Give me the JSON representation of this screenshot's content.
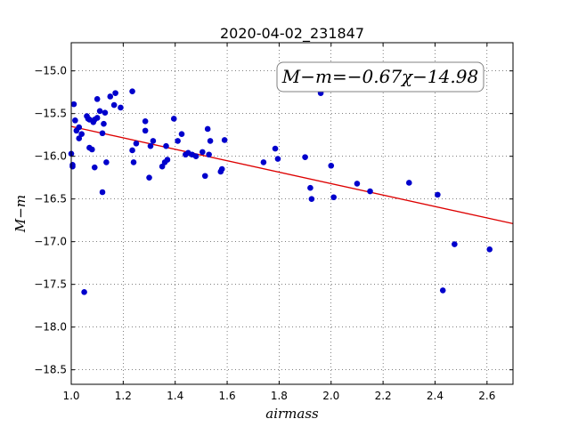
{
  "chart_data": {
    "type": "scatter",
    "title": "2020-04-02_231847",
    "xlabel": "airmass",
    "ylabel": "M−m",
    "xlim": [
      1.0,
      2.7
    ],
    "ylim": [
      -18.67,
      -14.67
    ],
    "y_inverted": true,
    "x_ticks": [
      1.0,
      1.2,
      1.4,
      1.6,
      1.8,
      2.0,
      2.2,
      2.4,
      2.6
    ],
    "x_tick_labels": [
      "1.0",
      "1.2",
      "1.4",
      "1.6",
      "1.8",
      "2.0",
      "2.2",
      "2.4",
      "2.6"
    ],
    "y_ticks": [
      -15.0,
      -15.5,
      -16.0,
      -16.5,
      -17.0,
      -17.5,
      -18.0,
      -18.5
    ],
    "y_tick_labels": [
      "−15.0",
      "−15.5",
      "−16.0",
      "−16.5",
      "−17.0",
      "−17.5",
      "−18.0",
      "−18.5"
    ],
    "grid": true,
    "annotation": "M−m=−0.67χ−14.98",
    "fit": {
      "slope": -0.67,
      "intercept": -14.98,
      "color": "#dd0000"
    },
    "marker_color": "#0000cc",
    "points": [
      [
        1.0,
        -15.97
      ],
      [
        1.005,
        -16.12
      ],
      [
        1.005,
        -16.1
      ],
      [
        1.01,
        -15.39
      ],
      [
        1.015,
        -15.58
      ],
      [
        1.02,
        -15.7
      ],
      [
        1.03,
        -15.66
      ],
      [
        1.03,
        -15.79
      ],
      [
        1.04,
        -15.74
      ],
      [
        1.05,
        -17.59
      ],
      [
        1.06,
        -15.53
      ],
      [
        1.065,
        -15.56
      ],
      [
        1.07,
        -15.57
      ],
      [
        1.07,
        -15.9
      ],
      [
        1.08,
        -15.92
      ],
      [
        1.085,
        -15.6
      ],
      [
        1.09,
        -16.13
      ],
      [
        1.09,
        -15.57
      ],
      [
        1.1,
        -15.33
      ],
      [
        1.1,
        -15.55
      ],
      [
        1.11,
        -15.47
      ],
      [
        1.12,
        -16.42
      ],
      [
        1.12,
        -15.73
      ],
      [
        1.125,
        -15.62
      ],
      [
        1.13,
        -15.49
      ],
      [
        1.135,
        -16.07
      ],
      [
        1.15,
        -15.3
      ],
      [
        1.165,
        -15.4
      ],
      [
        1.17,
        -15.26
      ],
      [
        1.19,
        -15.43
      ],
      [
        1.235,
        -15.24
      ],
      [
        1.235,
        -15.93
      ],
      [
        1.24,
        -16.07
      ],
      [
        1.25,
        -15.85
      ],
      [
        1.285,
        -15.59
      ],
      [
        1.285,
        -15.7
      ],
      [
        1.3,
        -16.25
      ],
      [
        1.305,
        -15.88
      ],
      [
        1.315,
        -15.82
      ],
      [
        1.35,
        -16.12
      ],
      [
        1.36,
        -16.07
      ],
      [
        1.365,
        -15.88
      ],
      [
        1.37,
        -16.04
      ],
      [
        1.395,
        -15.56
      ],
      [
        1.41,
        -15.82
      ],
      [
        1.425,
        -15.74
      ],
      [
        1.44,
        -15.98
      ],
      [
        1.45,
        -15.96
      ],
      [
        1.465,
        -15.98
      ],
      [
        1.48,
        -16.0
      ],
      [
        1.505,
        -15.95
      ],
      [
        1.515,
        -16.23
      ],
      [
        1.525,
        -15.68
      ],
      [
        1.53,
        -15.98
      ],
      [
        1.535,
        -15.82
      ],
      [
        1.575,
        -16.18
      ],
      [
        1.58,
        -16.15
      ],
      [
        1.59,
        -15.81
      ],
      [
        1.74,
        -16.07
      ],
      [
        1.785,
        -15.91
      ],
      [
        1.795,
        -16.03
      ],
      [
        1.9,
        -16.01
      ],
      [
        1.92,
        -16.37
      ],
      [
        1.925,
        -16.5
      ],
      [
        1.96,
        -15.26
      ],
      [
        2.0,
        -16.11
      ],
      [
        2.01,
        -16.48
      ],
      [
        2.1,
        -16.32
      ],
      [
        2.15,
        -16.41
      ],
      [
        2.3,
        -16.31
      ],
      [
        2.41,
        -16.45
      ],
      [
        2.43,
        -17.57
      ],
      [
        2.475,
        -17.03
      ],
      [
        2.61,
        -17.09
      ]
    ]
  }
}
